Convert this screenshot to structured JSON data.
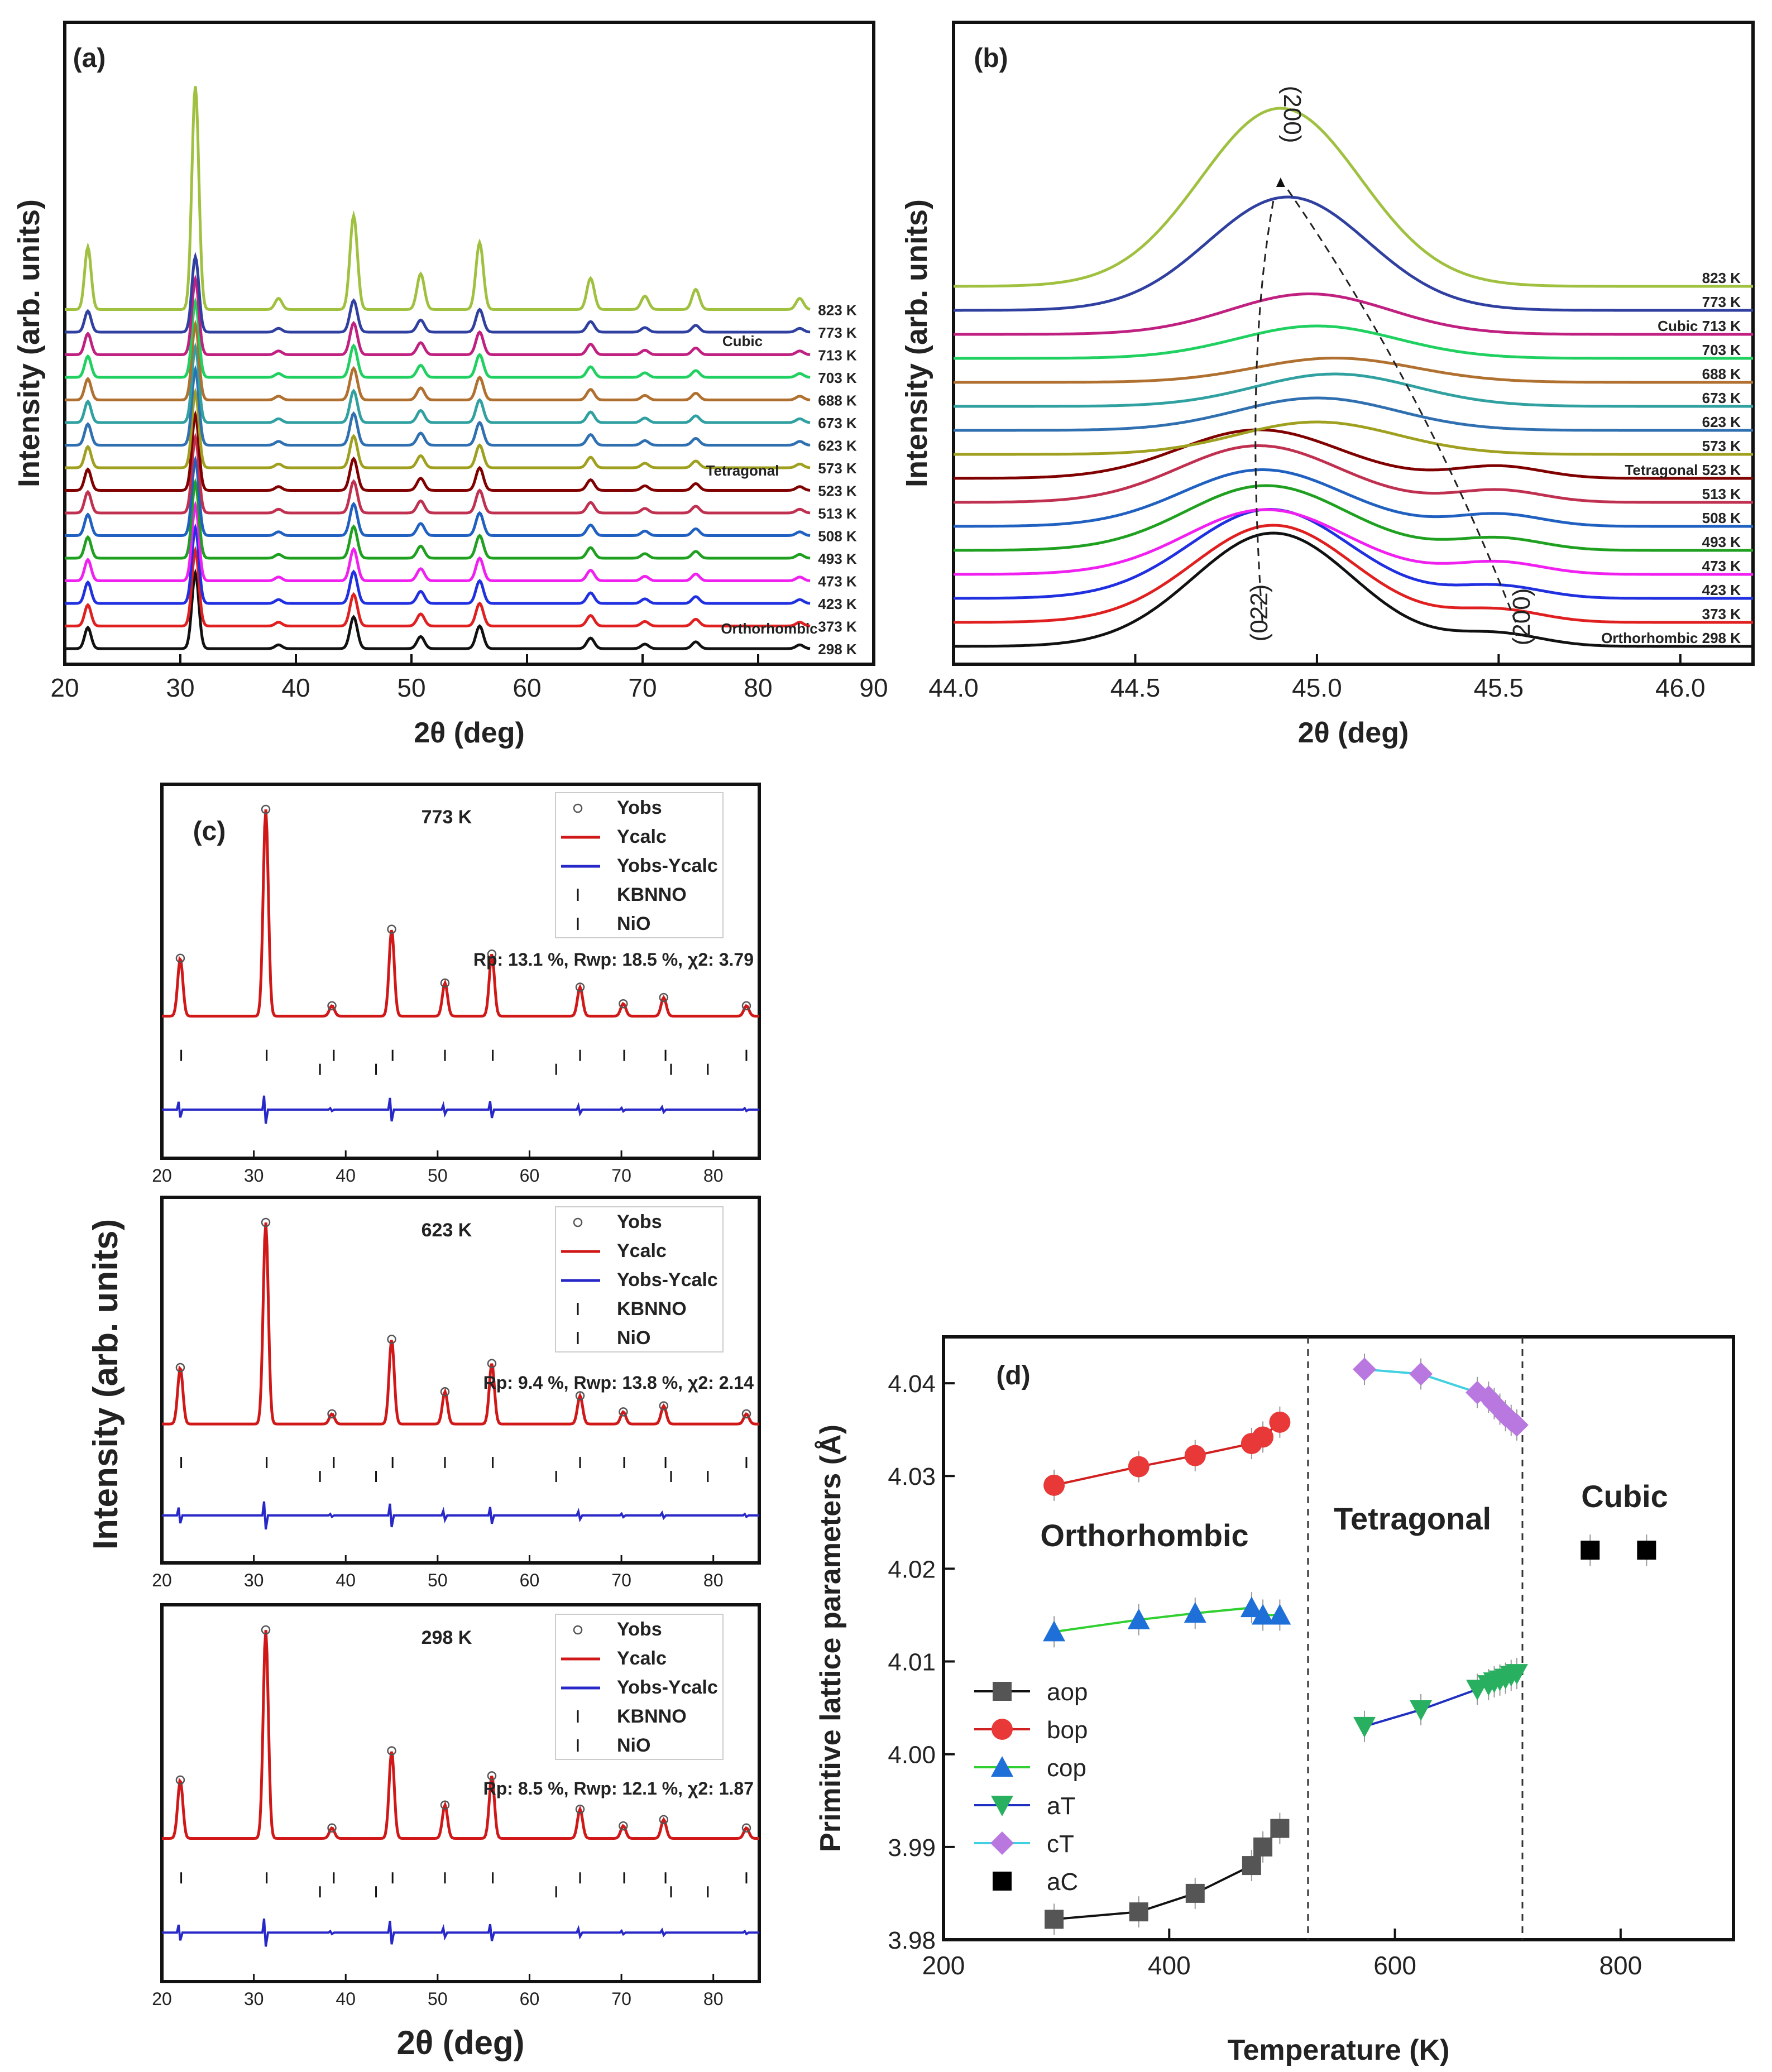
{
  "chart_data": [
    {
      "panel": "(a)",
      "type": "line",
      "xlabel": "2θ (deg)",
      "ylabel": "Intensity (arb. units)",
      "xlim": [
        20,
        90
      ],
      "xticks": [
        20,
        30,
        40,
        50,
        60,
        70,
        80,
        90
      ],
      "peaks_2theta": [
        22.0,
        31.3,
        38.5,
        45.0,
        50.8,
        55.9,
        65.5,
        70.2,
        74.6,
        83.6
      ],
      "peak_heights": [
        0.28,
        1.0,
        0.05,
        0.42,
        0.16,
        0.3,
        0.14,
        0.06,
        0.09,
        0.05
      ],
      "series": [
        {
          "name": "298 K",
          "color": "#111111"
        },
        {
          "name": "373 K",
          "color": "#e02020"
        },
        {
          "name": "423 K",
          "color": "#2030e0"
        },
        {
          "name": "473 K",
          "color": "#f020f0"
        },
        {
          "name": "493 K",
          "color": "#20a020"
        },
        {
          "name": "508 K",
          "color": "#2060c0"
        },
        {
          "name": "513 K",
          "color": "#c03050"
        },
        {
          "name": "523 K",
          "color": "#800000"
        },
        {
          "name": "573 K",
          "color": "#a0a020"
        },
        {
          "name": "623 K",
          "color": "#3070b0"
        },
        {
          "name": "673 K",
          "color": "#30a0a0"
        },
        {
          "name": "688 K",
          "color": "#b07030"
        },
        {
          "name": "703 K",
          "color": "#20d060"
        },
        {
          "name": "713 K",
          "color": "#c02080"
        },
        {
          "name": "773 K",
          "color": "#3040a0"
        },
        {
          "name": "823 K",
          "color": "#a0c040"
        }
      ],
      "annotations": [
        "Cubic",
        "Tetragonal",
        "Orthorhombic"
      ]
    },
    {
      "panel": "(b)",
      "type": "line",
      "xlabel": "2θ (deg)",
      "ylabel": "Intensity (arb. units)",
      "xlim": [
        44.0,
        46.2
      ],
      "xticks": [
        44.0,
        44.5,
        45.0,
        45.5,
        46.0
      ],
      "series": [
        "298 K",
        "373 K",
        "423 K",
        "473 K",
        "493 K",
        "508 K",
        "513 K",
        "523 K",
        "573 K",
        "623 K",
        "673 K",
        "688 K",
        "703 K",
        "713 K",
        "773 K",
        "823 K"
      ],
      "peak_centers": [
        44.88,
        44.88,
        44.87,
        44.86,
        44.86,
        44.85,
        44.84,
        44.84,
        45.0,
        45.0,
        45.05,
        45.05,
        45.0,
        44.98,
        44.92,
        44.9
      ],
      "peak_heights": [
        0.14,
        0.12,
        0.11,
        0.08,
        0.08,
        0.07,
        0.07,
        0.06,
        0.04,
        0.04,
        0.04,
        0.03,
        0.04,
        0.05,
        0.14,
        0.22
      ],
      "labels": [
        "Orthorhombic 298 K",
        "Tetragonal 523 K",
        "Cubic 713 K"
      ],
      "annotations": [
        "(200)",
        "(022)",
        "(200)"
      ]
    },
    {
      "panel": "(c)",
      "type": "line",
      "xlabel": "2θ (deg)",
      "ylabel": "Intensity (arb. units)",
      "xlim": [
        20,
        85
      ],
      "xticks": [
        20,
        30,
        40,
        50,
        60,
        70,
        80
      ],
      "legend": [
        "Yobs",
        "Ycalc",
        "Yobs-Ycalc",
        "KBNNO",
        "NiO"
      ],
      "subplots": [
        {
          "temp": "773 K",
          "rp": "13.1",
          "rwp": "18.5",
          "chi2": "3.79"
        },
        {
          "temp": "623 K",
          "rp": "9.4",
          "rwp": "13.8",
          "chi2": "2.14"
        },
        {
          "temp": "298 K",
          "rp": "8.5",
          "rwp": "12.1",
          "chi2": "1.87"
        }
      ],
      "kbnno_ticks": [
        22.1,
        31.4,
        38.7,
        45.1,
        50.8,
        56.0,
        65.5,
        70.3,
        74.8,
        83.6
      ],
      "nio_ticks": [
        37.2,
        43.3,
        62.9,
        75.4,
        79.4
      ]
    },
    {
      "panel": "(d)",
      "type": "scatter",
      "xlabel": "Temperature (K)",
      "ylabel": "Primitive lattice parameters (Å)",
      "xlim": [
        200,
        900
      ],
      "ylim": [
        3.98,
        4.045
      ],
      "xticks": [
        200,
        400,
        600,
        800
      ],
      "yticks": [
        3.98,
        3.99,
        4.0,
        4.01,
        4.02,
        4.03,
        4.04
      ],
      "phase_boundaries": [
        523,
        713
      ],
      "phase_labels": [
        "Orthorhombic",
        "Tetragonal",
        "Cubic"
      ],
      "series": [
        {
          "name": "aop",
          "marker": "square",
          "color": "#555555",
          "line": "#111111",
          "x": [
            298,
            373,
            423,
            473,
            483,
            498
          ],
          "y": [
            3.9822,
            3.983,
            3.985,
            3.988,
            3.99,
            3.992
          ]
        },
        {
          "name": "bop",
          "marker": "circle",
          "color": "#e83838",
          "line": "#d02020",
          "x": [
            298,
            373,
            423,
            473,
            483,
            498
          ],
          "y": [
            4.029,
            4.031,
            4.0322,
            4.0335,
            4.0342,
            4.0358
          ]
        },
        {
          "name": "cop",
          "marker": "triangle-up",
          "color": "#1e6fd8",
          "line": "#30d030",
          "x": [
            298,
            373,
            423,
            473,
            483,
            498
          ],
          "y": [
            4.0132,
            4.0145,
            4.0152,
            4.0158,
            4.015,
            4.015
          ]
        },
        {
          "name": "aT",
          "marker": "triangle-down",
          "color": "#28b060",
          "line": "#2030c0",
          "x": [
            573,
            623,
            673,
            683,
            688,
            693,
            698,
            703,
            708
          ],
          "y": [
            4.003,
            4.0048,
            4.007,
            4.0075,
            4.0078,
            4.008,
            4.0082,
            4.0085,
            4.0087
          ]
        },
        {
          "name": "cT",
          "marker": "diamond",
          "color": "#b878e0",
          "line": "#40d0e0",
          "x": [
            573,
            623,
            673,
            683,
            688,
            693,
            698,
            703,
            708
          ],
          "y": [
            4.0415,
            4.041,
            4.039,
            4.0385,
            4.0378,
            4.0372,
            4.0365,
            4.036,
            4.0355
          ]
        },
        {
          "name": "aC",
          "marker": "square",
          "color": "#000000",
          "line": "none",
          "x": [
            773,
            823
          ],
          "y": [
            4.022,
            4.022
          ]
        }
      ]
    }
  ]
}
